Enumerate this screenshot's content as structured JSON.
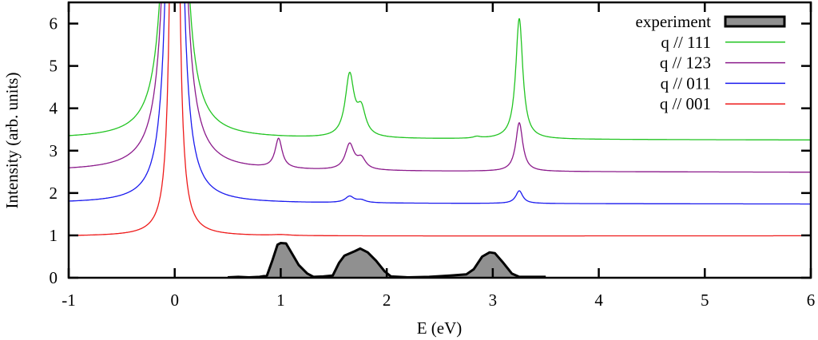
{
  "chart_data": {
    "type": "line",
    "title": "",
    "xlabel": "E (eV)",
    "ylabel": "Intensity (arb. units)",
    "xlim": [
      -1,
      6
    ],
    "ylim": [
      0,
      6.5
    ],
    "xticks": [
      -1,
      0,
      1,
      2,
      3,
      4,
      5,
      6
    ],
    "yticks": [
      0,
      1,
      2,
      3,
      4,
      5,
      6
    ],
    "grid": false,
    "legend_position": "top-right",
    "experiment": {
      "name": "experiment",
      "fill": "#909090",
      "points": [
        [
          0.5,
          0.01
        ],
        [
          0.6,
          0.02
        ],
        [
          0.7,
          0.01
        ],
        [
          0.8,
          0.02
        ],
        [
          0.87,
          0.05
        ],
        [
          0.92,
          0.4
        ],
        [
          0.97,
          0.78
        ],
        [
          1.0,
          0.82
        ],
        [
          1.05,
          0.81
        ],
        [
          1.1,
          0.6
        ],
        [
          1.17,
          0.3
        ],
        [
          1.25,
          0.1
        ],
        [
          1.31,
          0.02
        ],
        [
          1.4,
          0.03
        ],
        [
          1.49,
          0.05
        ],
        [
          1.55,
          0.35
        ],
        [
          1.6,
          0.52
        ],
        [
          1.7,
          0.63
        ],
        [
          1.75,
          0.69
        ],
        [
          1.82,
          0.6
        ],
        [
          1.9,
          0.4
        ],
        [
          1.98,
          0.15
        ],
        [
          2.04,
          0.03
        ],
        [
          2.2,
          0.01
        ],
        [
          2.4,
          0.02
        ],
        [
          2.6,
          0.05
        ],
        [
          2.75,
          0.08
        ],
        [
          2.82,
          0.2
        ],
        [
          2.9,
          0.5
        ],
        [
          2.97,
          0.6
        ],
        [
          3.02,
          0.58
        ],
        [
          3.1,
          0.35
        ],
        [
          3.18,
          0.1
        ],
        [
          3.25,
          0.02
        ],
        [
          3.5,
          0.02
        ]
      ]
    },
    "series": [
      {
        "name": "q // 111",
        "color": "#22c422",
        "baseline": [
          3.28,
          3.25
        ],
        "peaks": [
          {
            "center": 0,
            "height": 30,
            "width": 0.05
          },
          {
            "center": 1.65,
            "height": 1.45,
            "width": 0.05
          },
          {
            "center": 1.76,
            "height": 0.6,
            "width": 0.05
          },
          {
            "center": 2.85,
            "height": 0.04,
            "width": 0.04
          },
          {
            "center": 3.25,
            "height": 2.85,
            "width": 0.04
          }
        ]
      },
      {
        "name": "q // 123",
        "color": "#8b1a8b",
        "baseline": [
          2.52,
          2.49
        ],
        "peaks": [
          {
            "center": 0,
            "height": 30,
            "width": 0.05
          },
          {
            "center": 0.98,
            "height": 0.7,
            "width": 0.04
          },
          {
            "center": 1.65,
            "height": 0.6,
            "width": 0.05
          },
          {
            "center": 1.76,
            "height": 0.25,
            "width": 0.05
          },
          {
            "center": 3.25,
            "height": 1.15,
            "width": 0.04
          }
        ]
      },
      {
        "name": "q // 011",
        "color": "#1a1aee",
        "baseline": [
          1.76,
          1.74
        ],
        "peaks": [
          {
            "center": 0,
            "height": 31,
            "width": 0.04
          },
          {
            "center": 1.65,
            "height": 0.15,
            "width": 0.05
          },
          {
            "center": 1.76,
            "height": 0.06,
            "width": 0.05
          },
          {
            "center": 3.25,
            "height": 0.3,
            "width": 0.04
          }
        ]
      },
      {
        "name": "q // 001",
        "color": "#ee1a1a",
        "baseline": [
          0.98,
          0.99
        ],
        "peaks": [
          {
            "center": 0,
            "height": 29,
            "width": 0.025
          },
          {
            "center": 1.0,
            "height": 0.02,
            "width": 0.1
          }
        ]
      }
    ]
  }
}
